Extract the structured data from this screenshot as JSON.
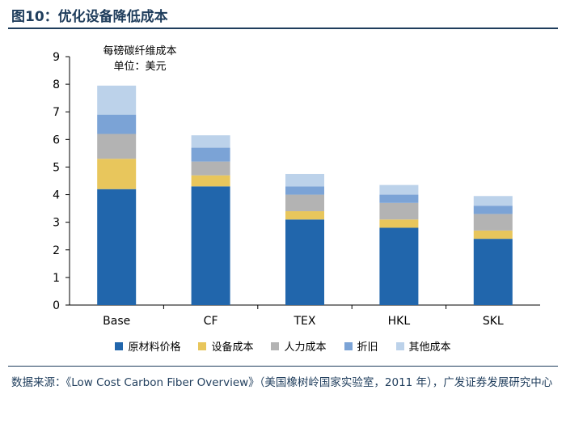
{
  "figure": {
    "title": "图10：优化设备降低成本",
    "note_line1": "每磅碳纤维成本",
    "note_line2": "单位：美元",
    "source": "数据来源：《Low Cost Carbon Fiber Overview》（美国橡树岭国家实验室，2011 年），广发证券发展研究中心"
  },
  "chart_data": {
    "type": "bar",
    "stacked": true,
    "title": "",
    "xlabel": "",
    "ylabel": "",
    "ylim": [
      0,
      9
    ],
    "yticks": [
      "0",
      "1",
      "2",
      "3",
      "4",
      "5",
      "6",
      "7",
      "8",
      "9"
    ],
    "grid": false,
    "legend_position": "bottom",
    "categories": [
      "Base",
      "CF",
      "TEX",
      "HKL",
      "SKL"
    ],
    "series": [
      {
        "name": "原材料价格",
        "color": "#2166ac",
        "values": [
          4.2,
          4.3,
          3.1,
          2.8,
          2.4
        ]
      },
      {
        "name": "设备成本",
        "color": "#e8c65c",
        "values": [
          1.1,
          0.4,
          0.3,
          0.3,
          0.3
        ]
      },
      {
        "name": "人力成本",
        "color": "#b3b3b3",
        "values": [
          0.9,
          0.5,
          0.6,
          0.6,
          0.6
        ]
      },
      {
        "name": "折旧",
        "color": "#7ba3d6",
        "values": [
          0.7,
          0.5,
          0.3,
          0.3,
          0.3
        ]
      },
      {
        "name": "其他成本",
        "color": "#bcd2ea",
        "values": [
          1.05,
          0.45,
          0.45,
          0.35,
          0.35
        ]
      }
    ]
  }
}
